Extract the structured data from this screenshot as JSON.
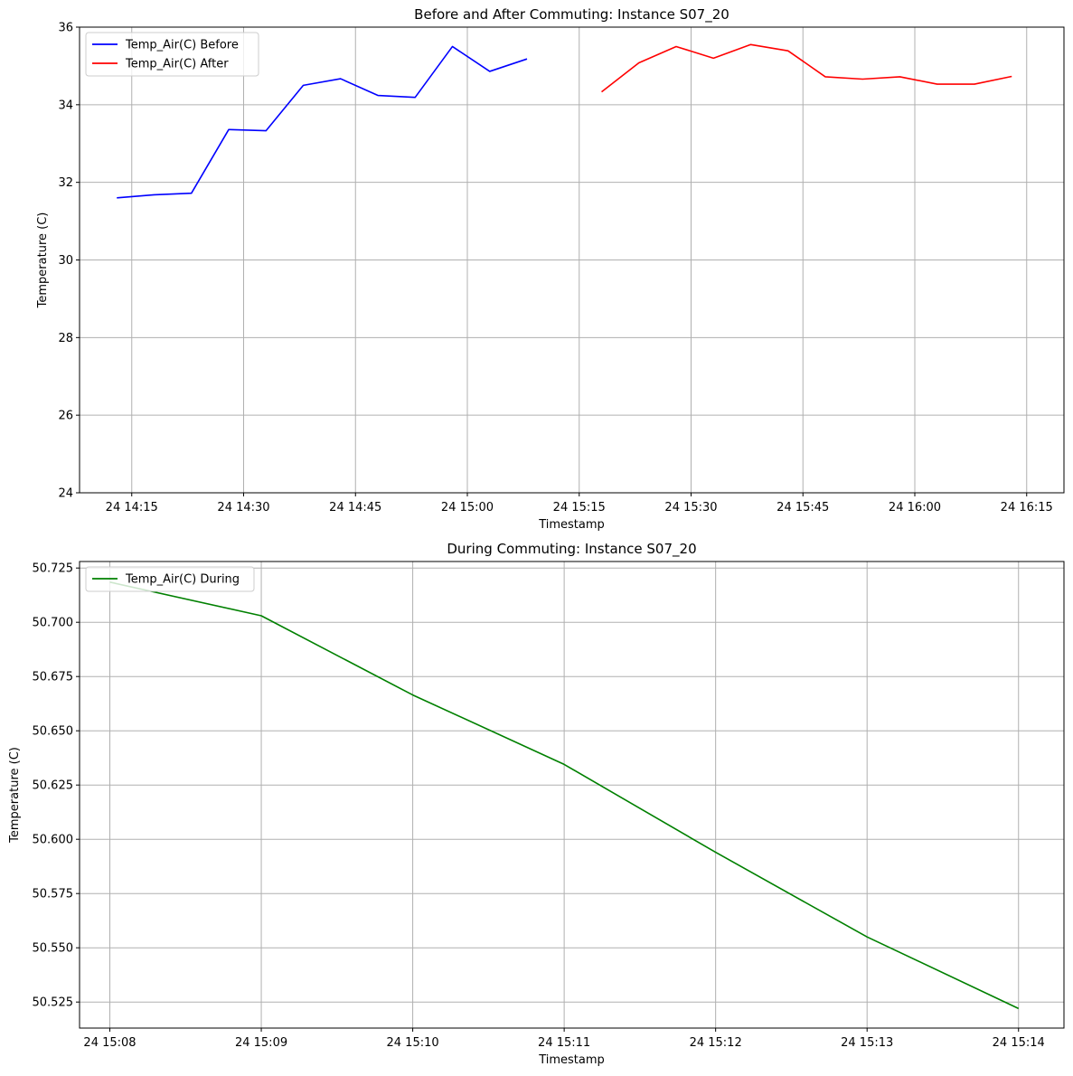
{
  "chart_data": [
    {
      "type": "line",
      "title": "Before and After Commuting: Instance  S07_20",
      "xlabel": "Timestamp",
      "ylabel": "Temperature (C)",
      "xlim": [
        "24 14:08",
        "24 16:20"
      ],
      "ylim": [
        24,
        36
      ],
      "grid": true,
      "legend_position": "top-left",
      "x_ticks": [
        "24 14:15",
        "24 14:30",
        "24 14:45",
        "24 15:00",
        "24 15:15",
        "24 15:30",
        "24 15:45",
        "24 16:00",
        "24 16:15"
      ],
      "y_ticks": [
        "24",
        "26",
        "28",
        "30",
        "32",
        "34",
        "36"
      ],
      "series": [
        {
          "name": "Temp_Air(C) Before",
          "color": "#0000ff",
          "x": [
            "24 14:13",
            "24 14:18",
            "24 14:23",
            "24 14:28",
            "24 14:33",
            "24 14:38",
            "24 14:43",
            "24 14:48",
            "24 14:53",
            "24 14:58",
            "24 15:03",
            "24 15:08"
          ],
          "y": [
            31.6,
            31.68,
            31.72,
            33.36,
            33.33,
            34.5,
            34.67,
            34.24,
            34.19,
            35.5,
            34.86,
            35.18
          ]
        },
        {
          "name": "Temp_Air(C) After",
          "color": "#ff0000",
          "x": [
            "24 15:18",
            "24 15:23",
            "24 15:28",
            "24 15:33",
            "24 15:38",
            "24 15:43",
            "24 15:48",
            "24 15:53",
            "24 15:58",
            "24 16:03",
            "24 16:08",
            "24 16:13"
          ],
          "y": [
            34.33,
            35.08,
            35.5,
            35.2,
            35.55,
            35.39,
            34.72,
            34.66,
            34.72,
            34.53,
            34.53,
            34.73
          ]
        }
      ]
    },
    {
      "type": "line",
      "title": "During Commuting: Instance  S07_20",
      "xlabel": "Timestamp",
      "ylabel": "Temperature (C)",
      "xlim": [
        "24 15:07:48",
        "24 15:14:18"
      ],
      "ylim": [
        50.513,
        50.728
      ],
      "grid": true,
      "legend_position": "top-left",
      "x_ticks": [
        "24 15:08",
        "24 15:09",
        "24 15:10",
        "24 15:11",
        "24 15:12",
        "24 15:13",
        "24 15:14"
      ],
      "y_ticks": [
        "50.525",
        "50.550",
        "50.575",
        "50.600",
        "50.625",
        "50.650",
        "50.675",
        "50.700",
        "50.725"
      ],
      "series": [
        {
          "name": "Temp_Air(C) During",
          "color": "#008000",
          "x": [
            "24 15:08",
            "24 15:09",
            "24 15:10",
            "24 15:11",
            "24 15:12",
            "24 15:13",
            "24 15:14"
          ],
          "y": [
            50.7185,
            50.703,
            50.6665,
            50.6345,
            50.594,
            50.555,
            50.522
          ]
        }
      ]
    }
  ]
}
